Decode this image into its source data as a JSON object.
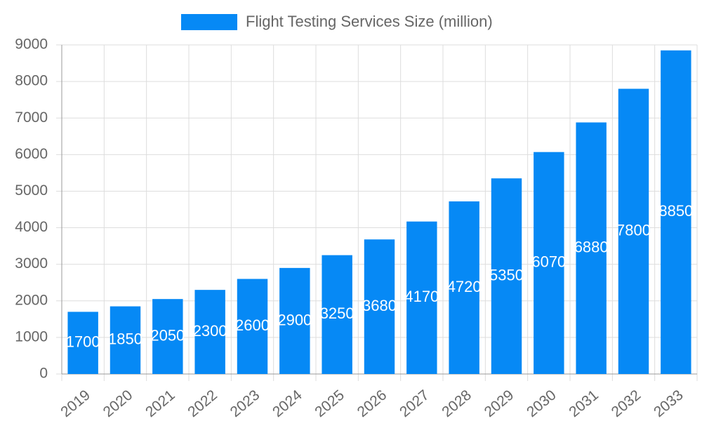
{
  "chart_data": {
    "type": "bar",
    "legend": "Flight Testing Services Size (million)",
    "color": "#0689f5",
    "categories": [
      "2019",
      "2020",
      "2021",
      "2022",
      "2023",
      "2024",
      "2025",
      "2026",
      "2027",
      "2028",
      "2029",
      "2030",
      "2031",
      "2032",
      "2033"
    ],
    "values": [
      1700,
      1850,
      2050,
      2300,
      2600,
      2900,
      3250,
      3680,
      4170,
      4720,
      5350,
      6070,
      6880,
      7800,
      8850
    ],
    "ylim": [
      0,
      9000
    ],
    "yticks": [
      0,
      1000,
      2000,
      3000,
      4000,
      5000,
      6000,
      7000,
      8000,
      9000
    ],
    "grid": true
  }
}
